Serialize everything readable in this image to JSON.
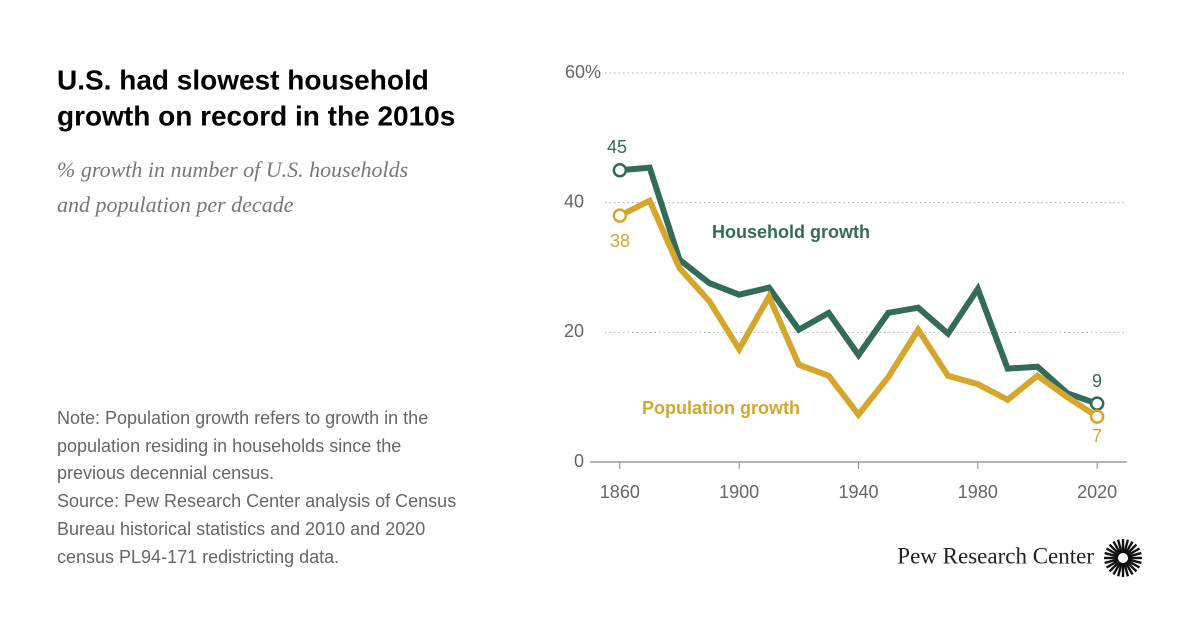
{
  "chart_data": {
    "type": "line",
    "title": [
      "U.S. had slowest household",
      "growth on record in the 2010s"
    ],
    "subtitle": [
      "% growth in number of U.S. households",
      "and population per decade"
    ],
    "note": [
      "Note: Population growth refers to growth in the",
      "population residing in households since the",
      "previous decennial census."
    ],
    "source": [
      "Source: Pew Research Center analysis of Census",
      "Bureau historical statistics and 2010 and 2020",
      "census PL94-171 redistricting data."
    ],
    "brand": "Pew Research Center",
    "x": [
      1860,
      1870,
      1880,
      1890,
      1900,
      1910,
      1920,
      1930,
      1940,
      1950,
      1960,
      1970,
      1980,
      1990,
      2000,
      2010,
      2020
    ],
    "series": [
      {
        "name": "Household growth",
        "color": "#336b5a",
        "values": [
          45,
          45.4,
          31.2,
          27.6,
          25.8,
          26.9,
          20.4,
          23.0,
          16.5,
          23.0,
          23.8,
          19.8,
          26.7,
          14.4,
          14.7,
          10.6,
          9
        ]
      },
      {
        "name": "Population growth",
        "color": "#d4a72c",
        "values": [
          38,
          40.3,
          29.9,
          24.8,
          17.4,
          25.5,
          15.0,
          13.3,
          7.3,
          13.1,
          20.4,
          13.3,
          12.0,
          9.6,
          13.3,
          10.0,
          7
        ]
      }
    ],
    "xlim": [
      1850,
      2030
    ],
    "xticks": [
      1860,
      1900,
      1940,
      1980,
      2020
    ],
    "ylim": [
      0,
      60
    ],
    "yticks": [
      0,
      20,
      40,
      {
        "value": 60,
        "label": "60%"
      }
    ],
    "grid": true
  }
}
